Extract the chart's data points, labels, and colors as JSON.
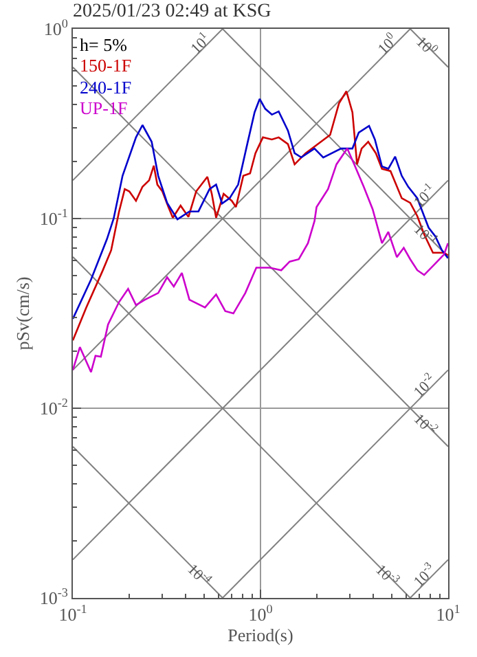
{
  "chart_data": {
    "type": "line",
    "title": "2025/01/23 02:49 at KSG",
    "xlabel": "Period(s)",
    "ylabel": "pSv(cm/s)",
    "legend_title": "h= 5%",
    "legend": "top left",
    "log": "xy",
    "grid": true,
    "xlim": [
      0.1,
      10
    ],
    "ylim": [
      0.001,
      1
    ],
    "xticks": [
      {
        "value": 0.1,
        "label": "10$^{-1}$"
      },
      {
        "value": 1,
        "label": "10$^{0}$"
      },
      {
        "value": 10,
        "label": "10$^{1}$"
      }
    ],
    "yticks": [
      {
        "value": 0.001,
        "label": "10$^{-3}$"
      },
      {
        "value": 0.01,
        "label": "10$^{-2}$"
      },
      {
        "value": 0.1,
        "label": "10$^{-1}$"
      },
      {
        "value": 1,
        "label": "10$^{0}$"
      }
    ],
    "series": [
      {
        "name": "10$^{1}$",
        "line_style": "solid",
        "color": "#808080",
        "x": [
          0.1,
          0.628
        ],
        "values": [
          0.159,
          1
        ]
      },
      {
        "name": "10$^{0}$",
        "line_style": "solid",
        "color": "#808080",
        "x": [
          0.1,
          6.28
        ],
        "values": [
          0.0159,
          1
        ]
      },
      {
        "name": "10$^{-1}$",
        "line_style": "solid",
        "color": "#808080",
        "x": [
          0.1,
          10
        ],
        "values": [
          0.00159,
          0.159
        ]
      },
      {
        "name": "10$^{-2}$",
        "line_style": "solid",
        "color": "#808080",
        "x": [
          0.628,
          10
        ],
        "values": [
          0.001,
          0.0159
        ]
      },
      {
        "name": "10$^{-3}$",
        "line_style": "solid",
        "color": "#808080",
        "x": [
          6.28,
          10
        ],
        "values": [
          0.001,
          0.00159
        ]
      },
      {
        "name": "10$^{0}$",
        "line_style": "solid",
        "color": "#808080",
        "x": [
          6.28,
          10
        ],
        "values": [
          1,
          0.628
        ]
      },
      {
        "name": "10$^{-1}$",
        "line_style": "solid",
        "color": "#808080",
        "x": [
          0.628,
          10
        ],
        "values": [
          1,
          0.0628
        ]
      },
      {
        "name": "10$^{-2}$",
        "line_style": "solid",
        "color": "#808080",
        "x": [
          0.1,
          10
        ],
        "values": [
          0.628,
          0.00628
        ]
      },
      {
        "name": "10$^{-3}$",
        "line_style": "solid",
        "color": "#808080",
        "x": [
          0.1,
          6.28
        ],
        "values": [
          0.0628,
          0.001
        ]
      },
      {
        "name": "10$^{-4}$",
        "line_style": "solid",
        "color": "#808080",
        "x": [
          0.1,
          0.628
        ],
        "values": [
          0.00628,
          0.001
        ]
      },
      {
        "name": "150-1F",
        "color": "#cc0000",
        "x": [
          0.1,
          0.118,
          0.144,
          0.16,
          0.176,
          0.189,
          0.2,
          0.217,
          0.235,
          0.255,
          0.27,
          0.282,
          0.3,
          0.323,
          0.341,
          0.375,
          0.413,
          0.454,
          0.521,
          0.55,
          0.58,
          0.636,
          0.703,
          0.74,
          0.81,
          0.88,
          0.94,
          1.03,
          1.15,
          1.25,
          1.4,
          1.52,
          1.74,
          2.1,
          2.35,
          2.62,
          2.87,
          3.09,
          3.27,
          3.46,
          3.75,
          4.12,
          4.44,
          4.93,
          5.66,
          6.28,
          6.85,
          7.45,
          8.3,
          9.5,
          9.98
        ],
        "values": [
          0.0228,
          0.034,
          0.053,
          0.068,
          0.108,
          0.143,
          0.139,
          0.124,
          0.147,
          0.159,
          0.19,
          0.151,
          0.139,
          0.115,
          0.101,
          0.117,
          0.102,
          0.139,
          0.166,
          0.135,
          0.101,
          0.135,
          0.124,
          0.115,
          0.168,
          0.173,
          0.221,
          0.268,
          0.261,
          0.268,
          0.247,
          0.193,
          0.221,
          0.254,
          0.276,
          0.405,
          0.469,
          0.363,
          0.193,
          0.234,
          0.254,
          0.221,
          0.183,
          0.178,
          0.128,
          0.121,
          0.103,
          0.0825,
          0.066,
          0.066,
          0.064
        ]
      },
      {
        "name": "240-1F",
        "color": "#0000cc",
        "x": [
          0.1,
          0.125,
          0.152,
          0.165,
          0.184,
          0.217,
          0.235,
          0.263,
          0.285,
          0.318,
          0.361,
          0.418,
          0.467,
          0.535,
          0.58,
          0.624,
          0.685,
          0.76,
          0.85,
          0.93,
          0.99,
          1.06,
          1.15,
          1.25,
          1.4,
          1.52,
          1.65,
          1.94,
          2.16,
          2.69,
          3.09,
          3.34,
          3.79,
          4.07,
          4.44,
          4.8,
          5.22,
          5.66,
          6.13,
          6.85,
          7.45,
          7.87,
          8.55,
          9.25,
          9.98
        ],
        "values": [
          0.0296,
          0.0477,
          0.078,
          0.1,
          0.168,
          0.268,
          0.311,
          0.254,
          0.168,
          0.121,
          0.099,
          0.109,
          0.109,
          0.143,
          0.151,
          0.12,
          0.128,
          0.151,
          0.247,
          0.363,
          0.427,
          0.379,
          0.353,
          0.367,
          0.291,
          0.221,
          0.21,
          0.234,
          0.21,
          0.234,
          0.234,
          0.284,
          0.308,
          0.261,
          0.188,
          0.183,
          0.212,
          0.168,
          0.147,
          0.128,
          0.103,
          0.0895,
          0.0806,
          0.0682,
          0.0618
        ]
      },
      {
        "name": "UP-1F",
        "color": "#cc00cc",
        "x": [
          0.1,
          0.109,
          0.125,
          0.132,
          0.141,
          0.154,
          0.176,
          0.197,
          0.217,
          0.242,
          0.285,
          0.318,
          0.345,
          0.381,
          0.418,
          0.506,
          0.58,
          0.649,
          0.717,
          0.83,
          0.95,
          1.12,
          1.29,
          1.43,
          1.6,
          1.79,
          1.94,
          1.99,
          2.29,
          2.54,
          2.9,
          3.16,
          3.55,
          3.96,
          4.44,
          4.8,
          5.33,
          5.8,
          6.28,
          6.85,
          7.45,
          8.55,
          9.5,
          9.98
        ],
        "values": [
          0.0159,
          0.021,
          0.0155,
          0.0189,
          0.0187,
          0.0276,
          0.0362,
          0.0426,
          0.035,
          0.0373,
          0.0405,
          0.049,
          0.0438,
          0.0517,
          0.0373,
          0.034,
          0.0398,
          0.0325,
          0.0316,
          0.0405,
          0.0551,
          0.0551,
          0.0534,
          0.0593,
          0.061,
          0.0741,
          0.097,
          0.115,
          0.143,
          0.193,
          0.234,
          0.193,
          0.147,
          0.112,
          0.0741,
          0.085,
          0.0626,
          0.0701,
          0.061,
          0.0534,
          0.0504,
          0.058,
          0.0646,
          0.0741
        ]
      }
    ]
  }
}
